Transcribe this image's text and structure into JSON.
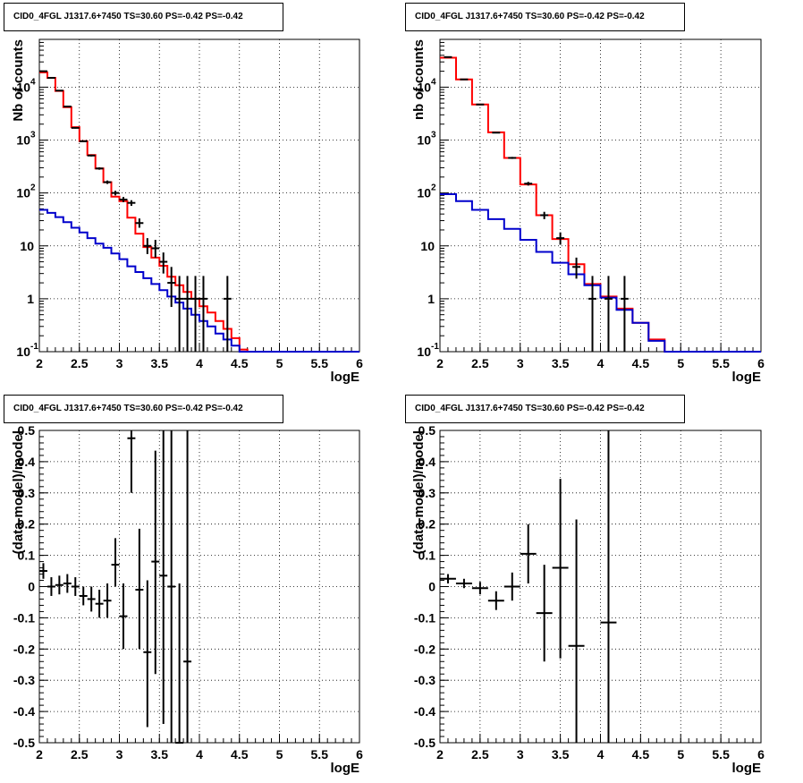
{
  "colors": {
    "data": "#000000",
    "model": "#ff0000",
    "background": "#0000cc",
    "grid": "#000000"
  },
  "chart_data": [
    {
      "type": "line",
      "title": "CID0_4FGL J1317.6+7450 TS=30.60 PS=-0.42 PS=-0.42",
      "xlabel": "logE",
      "ylabel": "Nb of counts",
      "log_y": true,
      "xlim": [
        2,
        6
      ],
      "ylim": [
        0.1,
        80000
      ],
      "xticks": [
        "2",
        "2.5",
        "3",
        "3.5",
        "4",
        "4.5",
        "5",
        "5.5",
        "6"
      ],
      "yticks": [
        "10^{-1}",
        "1",
        "10",
        "10^{2}",
        "10^{3}",
        "10^{4}"
      ],
      "grid": true,
      "bin_edges": [
        2.0,
        2.1,
        2.2,
        2.3,
        2.4,
        2.5,
        2.6,
        2.7,
        2.8,
        2.9,
        3.0,
        3.1,
        3.2,
        3.3,
        3.4,
        3.5,
        3.6,
        3.7,
        3.8,
        3.9,
        4.0,
        4.1,
        4.2,
        4.3,
        4.4,
        4.5,
        4.6,
        4.7,
        4.8,
        4.9,
        5.0,
        5.1,
        5.2,
        5.3,
        5.4,
        5.5,
        5.6,
        5.7,
        5.8,
        5.9,
        6.0
      ],
      "series": [
        {
          "style": "hist",
          "color": "#ff0000",
          "values": [
            19000,
            15000,
            8500,
            4200,
            1750,
            950,
            520,
            290,
            160,
            85,
            70,
            34,
            17,
            9.5,
            6,
            4.2,
            2.6,
            1.8,
            1.35,
            1.0,
            0.72,
            0.55,
            0.38,
            0.27,
            0.18,
            0.11,
            0.1,
            0.1,
            0.1,
            0.1,
            0.1,
            0.1,
            0.1,
            0.1,
            0.1,
            0.1,
            0.1,
            0.1,
            0.1,
            0.1
          ]
        },
        {
          "style": "hist",
          "color": "#0000cc",
          "values": [
            48,
            42,
            35,
            28,
            22,
            18,
            14,
            11,
            9.2,
            7.2,
            5.6,
            4.1,
            3.2,
            2.45,
            1.9,
            1.45,
            1.1,
            0.85,
            0.65,
            0.5,
            0.38,
            0.3,
            0.22,
            0.17,
            0.13,
            0.1,
            0.1,
            0.1,
            0.1,
            0.1,
            0.1,
            0.1,
            0.1,
            0.1,
            0.1,
            0.1,
            0.1,
            0.1,
            0.1,
            0.1
          ]
        },
        {
          "style": "points",
          "color": "#000000",
          "x": [
            2.05,
            2.15,
            2.25,
            2.35,
            2.45,
            2.55,
            2.65,
            2.75,
            2.85,
            2.95,
            3.05,
            3.15,
            3.25,
            3.35,
            3.45,
            3.55,
            3.65,
            3.75,
            3.85,
            3.95,
            4.05,
            4.35
          ],
          "y": [
            20000,
            15000,
            8600,
            4300,
            1700,
            950,
            510,
            290,
            160,
            100,
            75,
            65,
            27,
            10,
            9,
            5,
            2,
            1,
            1,
            1,
            1,
            1
          ],
          "ylo": [
            19900,
            14900,
            8500,
            4200,
            1650,
            920,
            490,
            275,
            148,
            90,
            67,
            57,
            22,
            7,
            6,
            3,
            0.7,
            0.1,
            0.1,
            0.1,
            0.1,
            0.1
          ],
          "yhi": [
            20150,
            15150,
            8700,
            4400,
            1750,
            980,
            530,
            305,
            172,
            110,
            84,
            73,
            33,
            14,
            13,
            7.5,
            4,
            2.7,
            2.7,
            2.7,
            2.7,
            2.7
          ]
        }
      ]
    },
    {
      "type": "line",
      "title": "CID0_4FGL J1317.6+7450 TS=30.60 PS=-0.42 PS=-0.42",
      "xlabel": "logE",
      "ylabel": "nb of counts",
      "log_y": true,
      "xlim": [
        2,
        6
      ],
      "ylim": [
        0.1,
        80000
      ],
      "xticks": [
        "2",
        "2.5",
        "3",
        "3.5",
        "4",
        "4.5",
        "5",
        "5.5",
        "6"
      ],
      "yticks": [
        "10^{-1}",
        "1",
        "10",
        "10^{2}",
        "10^{3}",
        "10^{4}"
      ],
      "grid": true,
      "bin_edges": [
        2.0,
        2.2,
        2.4,
        2.6,
        2.8,
        3.0,
        3.2,
        3.4,
        3.6,
        3.8,
        4.0,
        4.2,
        4.4,
        4.6,
        4.8,
        5.0,
        5.2,
        5.4,
        5.6,
        5.8,
        6.0
      ],
      "series": [
        {
          "style": "hist",
          "color": "#ff0000",
          "values": [
            36000,
            14000,
            4700,
            1400,
            460,
            145,
            38,
            13.5,
            4.5,
            1.9,
            1.1,
            0.65,
            0.35,
            0.17,
            0.1,
            0.1,
            0.1,
            0.1,
            0.1,
            0.1
          ]
        },
        {
          "style": "hist",
          "color": "#0000cc",
          "values": [
            95,
            70,
            48,
            32,
            21,
            13,
            7.7,
            4.8,
            2.9,
            1.8,
            1.05,
            0.62,
            0.35,
            0.16,
            0.1,
            0.1,
            0.1,
            0.1,
            0.1,
            0.1
          ]
        },
        {
          "style": "points",
          "color": "#000000",
          "x": [
            2.1,
            2.3,
            2.5,
            2.7,
            2.9,
            3.1,
            3.3,
            3.5,
            3.7,
            3.9,
            4.1,
            4.3
          ],
          "y": [
            37000,
            14000,
            4700,
            1380,
            460,
            150,
            38,
            14,
            4,
            1,
            1,
            1
          ],
          "ylo": [
            36800,
            13900,
            4630,
            1340,
            440,
            138,
            32,
            10.5,
            2.4,
            0.1,
            0.1,
            0.1
          ],
          "yhi": [
            37200,
            14100,
            4770,
            1420,
            480,
            162,
            44,
            18,
            6,
            2.7,
            2.7,
            2.7
          ]
        }
      ]
    },
    {
      "type": "scatter",
      "title": "CID0_4FGL J1317.6+7450 TS=30.60 PS=-0.42 PS=-0.42",
      "xlabel": "logE",
      "ylabel": "(data-model)/model",
      "xlim": [
        2,
        6
      ],
      "ylim": [
        -0.5,
        0.5
      ],
      "xticks": [
        "2",
        "2.5",
        "3",
        "3.5",
        "4",
        "4.5",
        "5",
        "5.5",
        "6"
      ],
      "yticks": [
        "-0.5",
        "-0.4",
        "-0.3",
        "-0.2",
        "-0.1",
        "0",
        "0.1",
        "0.2",
        "0.3",
        "0.4",
        "0.5"
      ],
      "grid": true,
      "xerr": 0.05,
      "series": [
        {
          "style": "points",
          "color": "#000000",
          "x": [
            2.05,
            2.15,
            2.25,
            2.35,
            2.45,
            2.55,
            2.65,
            2.75,
            2.85,
            2.95,
            3.05,
            3.15,
            3.25,
            3.35,
            3.45,
            3.55,
            3.65,
            3.75,
            3.85
          ],
          "y": [
            0.05,
            0.0,
            0.005,
            0.01,
            0.0,
            -0.03,
            -0.04,
            -0.055,
            -0.045,
            0.07,
            -0.095,
            0.475,
            -0.01,
            -0.21,
            0.08,
            0.035,
            0.0,
            -0.5,
            -0.24
          ],
          "ylo": [
            0.025,
            -0.03,
            -0.025,
            -0.02,
            -0.03,
            -0.06,
            -0.08,
            -0.1,
            -0.1,
            0.0,
            -0.2,
            0.3,
            -0.2,
            -0.45,
            -0.28,
            -0.44,
            -0.5,
            -0.5,
            -0.5
          ],
          "yhi": [
            0.075,
            0.03,
            0.035,
            0.04,
            0.03,
            0.0,
            0.0,
            -0.01,
            0.01,
            0.155,
            0.01,
            0.5,
            0.185,
            0.02,
            0.435,
            0.5,
            0.5,
            0.01,
            0.5
          ]
        }
      ]
    },
    {
      "type": "scatter",
      "title": "CID0_4FGL J1317.6+7450 TS=30.60 PS=-0.42 PS=-0.42",
      "xlabel": "logE",
      "ylabel": "(data-model)/model",
      "xlim": [
        2,
        6
      ],
      "ylim": [
        -0.5,
        0.5
      ],
      "xticks": [
        "2",
        "2.5",
        "3",
        "3.5",
        "4",
        "4.5",
        "5",
        "5.5",
        "6"
      ],
      "yticks": [
        "-0.5",
        "-0.4",
        "-0.3",
        "-0.2",
        "-0.1",
        "0",
        "0.1",
        "0.2",
        "0.3",
        "0.4",
        "0.5"
      ],
      "grid": true,
      "xerr": 0.1,
      "series": [
        {
          "style": "points",
          "color": "#000000",
          "x": [
            2.1,
            2.3,
            2.5,
            2.7,
            2.9,
            3.1,
            3.3,
            3.5,
            3.7,
            4.1
          ],
          "y": [
            0.025,
            0.01,
            -0.005,
            -0.045,
            0.0,
            0.105,
            -0.085,
            0.06,
            -0.19,
            -0.115
          ],
          "ylo": [
            0.01,
            -0.005,
            -0.025,
            -0.075,
            -0.045,
            0.01,
            -0.24,
            -0.23,
            -0.5,
            -0.5
          ],
          "yhi": [
            0.04,
            0.025,
            0.015,
            -0.015,
            0.045,
            0.2,
            0.07,
            0.345,
            0.215,
            0.5
          ]
        }
      ]
    }
  ]
}
